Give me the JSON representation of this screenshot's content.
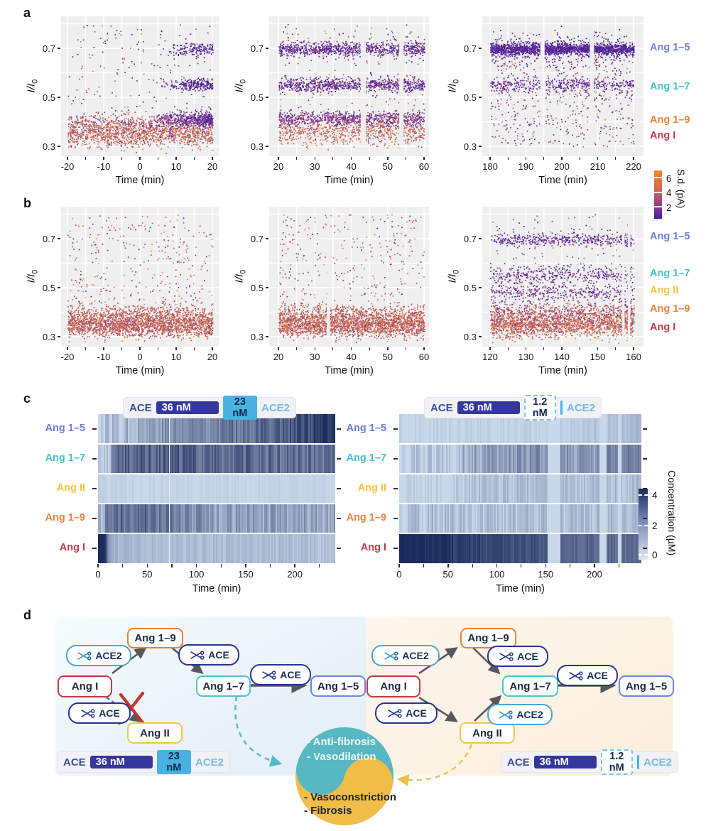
{
  "panel_letters": {
    "a": "a",
    "b": "b",
    "c": "c",
    "d": "d"
  },
  "axis": {
    "x": "Time (min)",
    "y_main": "I/I",
    "y_sub": "0"
  },
  "colors": {
    "plot_bg": "#efefef",
    "grid": "#ffffff",
    "heat_lo": "#c9d7ea",
    "heat_hi": "#1b2c5c",
    "teal": "#57b8c2",
    "yellow": "#f0bd49",
    "navy_chip": "#34379c",
    "light_blue_chip": "#49b2e2",
    "ace_text": "#3c4ca0",
    "ace2_text": "#79b8e6",
    "arrow": "#55595e",
    "red_x": "#c0392e",
    "ang15": "#6b7fdd",
    "ang17": "#44c3cf",
    "angII": "#f5c445",
    "ang19": "#f0813d",
    "angI": "#bf3a4a"
  },
  "colorbars": {
    "sd": {
      "label": "S.d. (pA)",
      "ticks": [
        "6",
        "4",
        "2"
      ],
      "gradient": [
        "#ef8a31",
        "#d66a49",
        "#b04f72",
        "#7c3496",
        "#451d9c"
      ]
    },
    "conc": {
      "label": "Concentration (µM)",
      "ticks": [
        "4",
        "2",
        "0"
      ],
      "gradient": [
        "#1b2c5c",
        "#8495bf",
        "#dfe6f1"
      ]
    }
  },
  "band_labels_a": [
    {
      "text": "Ang 1–5",
      "color": "#6b7fdd",
      "y": 68
    },
    {
      "text": "Ang 1–7",
      "color": "#44c3cf",
      "y": 123
    },
    {
      "text": "Ang 1–9",
      "color": "#f0813d",
      "y": 170
    },
    {
      "text": "Ang I",
      "color": "#bf3a4a",
      "y": 192
    }
  ],
  "band_labels_b": [
    {
      "text": "Ang 1–5",
      "color": "#6b7fdd",
      "y": 334
    },
    {
      "text": "Ang 1–7",
      "color": "#44c3cf",
      "y": 386
    },
    {
      "text": "Ang II",
      "color": "#f5c445",
      "y": 410
    },
    {
      "text": "Ang 1–9",
      "color": "#f0813d",
      "y": 436
    },
    {
      "text": "Ang I",
      "color": "#bf3a4a",
      "y": 462
    }
  ],
  "legends": {
    "left": {
      "ace": "ACE",
      "ace_val": "36 nM",
      "ace2_val": "23 nM",
      "ace2": "ACE2"
    },
    "right": {
      "ace": "ACE",
      "ace_val": "36 nM",
      "ace2_val": "1.2 nM",
      "ace2": "ACE2"
    }
  },
  "d": {
    "labels": {
      "angI": "Ang I",
      "ang19": "Ang 1–9",
      "ang17": "Ang 1–7",
      "ang15": "Ang 1–5",
      "angII": "Ang II",
      "ace": "ACE",
      "ace2": "ACE2"
    },
    "balance": {
      "top": [
        "- Anti-fibrosis",
        "- Vasodilation"
      ],
      "bottom": [
        "- Vasoconstriction",
        "- Fibrosis"
      ]
    }
  },
  "chart_data": [
    {
      "id": "a1",
      "type": "scatter",
      "xlabel": "Time (min)",
      "ylabel": "I/I0",
      "xlim": [
        -20,
        20
      ],
      "xticks": [
        -20,
        -10,
        0,
        10,
        20
      ],
      "yticks": [
        0.3,
        0.5,
        0.7
      ],
      "ylim": [
        0.27,
        0.83
      ],
      "grid": true,
      "seed": 11,
      "gaps": [],
      "bands": [
        {
          "x": [
            -20,
            20
          ],
          "yc": 0.352,
          "ys": 0.026,
          "n": 1100,
          "pal": [
            "#e2824b",
            "#d96e49",
            "#c65a52",
            "#b25468",
            "#9a4a77"
          ]
        },
        {
          "x": [
            -20,
            20
          ],
          "yc": 0.398,
          "ys": 0.02,
          "n": 420,
          "pal": [
            "#d97a50",
            "#b0506b",
            "#8a3c8e"
          ]
        },
        {
          "x": [
            3,
            20
          ],
          "yc": 0.412,
          "ys": 0.016,
          "n": 430,
          "ramp": 1,
          "pal": [
            "#45209c",
            "#5a2a9a",
            "#6e3196",
            "#8a3c8e"
          ]
        },
        {
          "x": [
            4,
            20
          ],
          "yc": 0.553,
          "ys": 0.012,
          "n": 230,
          "ramp": 1,
          "pal": [
            "#3c1c96",
            "#52249c",
            "#66309a"
          ]
        },
        {
          "x": [
            7,
            20
          ],
          "yc": 0.698,
          "ys": 0.013,
          "n": 150,
          "ramp": 1,
          "pal": [
            "#3c1c96",
            "#52249c",
            "#66309a"
          ]
        },
        {
          "x": [
            -20,
            20
          ],
          "uniform": [
            0.3,
            0.8
          ],
          "n": 230,
          "pal": [
            "#6e3196",
            "#8a3c8e",
            "#b05a6e",
            "#d97a50",
            "#45209c"
          ]
        }
      ]
    },
    {
      "id": "a2",
      "type": "scatter",
      "xlabel": "Time (min)",
      "ylabel": "I/I0",
      "xlim": [
        20,
        60
      ],
      "xticks": [
        20,
        30,
        40,
        50,
        60
      ],
      "yticks": [
        0.3,
        0.5,
        0.7
      ],
      "ylim": [
        0.27,
        0.83
      ],
      "grid": true,
      "seed": 22,
      "gaps": [
        [
          42.6,
          44.0
        ],
        [
          53.2,
          54.4
        ]
      ],
      "bands": [
        {
          "x": [
            20,
            60
          ],
          "yc": 0.36,
          "ys": 0.024,
          "n": 650,
          "pal": [
            "#e2824b",
            "#d96e49",
            "#c65a52",
            "#b25468"
          ]
        },
        {
          "x": [
            20,
            60
          ],
          "yc": 0.415,
          "ys": 0.015,
          "n": 850,
          "pal": [
            "#5a2a9a",
            "#6e3196",
            "#8a3c8e",
            "#b0506b"
          ]
        },
        {
          "x": [
            20,
            60
          ],
          "yc": 0.553,
          "ys": 0.013,
          "n": 800,
          "pal": [
            "#45209c",
            "#5a2a9a",
            "#6e3196",
            "#8a3c8e"
          ]
        },
        {
          "x": [
            20,
            60
          ],
          "yc": 0.698,
          "ys": 0.014,
          "n": 850,
          "pal": [
            "#45209c",
            "#5a2a9a",
            "#6e3196",
            "#8a3c8e"
          ]
        },
        {
          "x": [
            20,
            60
          ],
          "uniform": [
            0.3,
            0.8
          ],
          "n": 280,
          "pal": [
            "#6e3196",
            "#8a3c8e",
            "#b05a6e",
            "#d97a50",
            "#45209c"
          ]
        }
      ]
    },
    {
      "id": "a3",
      "type": "scatter",
      "xlabel": "Time (min)",
      "ylabel": "I/I0",
      "xlim": [
        180,
        220
      ],
      "xticks": [
        180,
        190,
        200,
        210,
        220
      ],
      "yticks": [
        0.3,
        0.5,
        0.7
      ],
      "ylim": [
        0.27,
        0.83
      ],
      "grid": true,
      "seed": 33,
      "gaps": [
        [
          194.0,
          195.2
        ],
        [
          207.8,
          209.0
        ]
      ],
      "bands": [
        {
          "x": [
            180,
            220
          ],
          "uniform": [
            0.3,
            0.67
          ],
          "n": 560,
          "pal": [
            "#6e3196",
            "#8a3c8e",
            "#52249c",
            "#b0506b",
            "#d97a50"
          ]
        },
        {
          "x": [
            180,
            220
          ],
          "yc": 0.551,
          "ys": 0.015,
          "n": 400,
          "pal": [
            "#45209c",
            "#5a2a9a",
            "#6e3196",
            "#8a3c8e"
          ]
        },
        {
          "x": [
            180,
            220
          ],
          "yc": 0.698,
          "ys": 0.034,
          "n": 420,
          "pal": [
            "#45209c",
            "#5a2a9a",
            "#6e3196"
          ]
        },
        {
          "x": [
            180,
            220
          ],
          "yc": 0.698,
          "ys": 0.011,
          "n": 1700,
          "pal": [
            "#3c1c96",
            "#52249c",
            "#5e2a93",
            "#6e3196"
          ]
        }
      ]
    },
    {
      "id": "b1",
      "type": "scatter",
      "xlabel": "Time (min)",
      "ylabel": "I/I0",
      "xlim": [
        -20,
        20
      ],
      "xticks": [
        -20,
        -10,
        0,
        10,
        20
      ],
      "yticks": [
        0.3,
        0.5,
        0.7
      ],
      "ylim": [
        0.27,
        0.83
      ],
      "grid": true,
      "seed": 44,
      "gaps": [],
      "bands": [
        {
          "x": [
            -20,
            20
          ],
          "yc": 0.352,
          "ys": 0.025,
          "n": 1900,
          "pal": [
            "#e2824b",
            "#d96e49",
            "#c65a52",
            "#b25468",
            "#9a4a77"
          ]
        },
        {
          "x": [
            -20,
            20
          ],
          "yc": 0.402,
          "ys": 0.018,
          "n": 320,
          "pal": [
            "#d97a50",
            "#c65a52",
            "#b0506b"
          ]
        },
        {
          "x": [
            -20,
            20
          ],
          "uniform": [
            0.3,
            0.8
          ],
          "n": 420,
          "pal": [
            "#b0506b",
            "#8a3c8e",
            "#d97a50",
            "#6e3196",
            "#e2824b"
          ]
        }
      ]
    },
    {
      "id": "b2",
      "type": "scatter",
      "xlabel": "Time (min)",
      "ylabel": "I/I0",
      "xlim": [
        20,
        60
      ],
      "xticks": [
        20,
        30,
        40,
        50,
        60
      ],
      "yticks": [
        0.3,
        0.5,
        0.7
      ],
      "ylim": [
        0.27,
        0.83
      ],
      "grid": true,
      "seed": 55,
      "gaps": [
        [
          33.3,
          34.2
        ]
      ],
      "bands": [
        {
          "x": [
            20,
            60
          ],
          "yc": 0.352,
          "ys": 0.025,
          "n": 2000,
          "pal": [
            "#e2824b",
            "#d96e49",
            "#c65a52",
            "#b25468",
            "#9a4a77"
          ]
        },
        {
          "x": [
            20,
            60
          ],
          "yc": 0.402,
          "ys": 0.018,
          "n": 320,
          "pal": [
            "#d97a50",
            "#c65a52",
            "#b0506b"
          ]
        },
        {
          "x": [
            20,
            60
          ],
          "uniform": [
            0.3,
            0.8
          ],
          "n": 380,
          "pal": [
            "#b0506b",
            "#8a3c8e",
            "#d97a50",
            "#6e3196",
            "#e2824b"
          ]
        }
      ]
    },
    {
      "id": "b3",
      "type": "scatter",
      "xlabel": "Time (min)",
      "ylabel": "I/I0",
      "xlim": [
        120,
        160
      ],
      "xticks": [
        120,
        130,
        140,
        150,
        160
      ],
      "yticks": [
        0.3,
        0.5,
        0.7
      ],
      "ylim": [
        0.27,
        0.83
      ],
      "grid": true,
      "seed": 66,
      "gaps": [
        [
          156.8,
          157.5
        ],
        [
          158.4,
          159.1
        ]
      ],
      "bands": [
        {
          "x": [
            120,
            160
          ],
          "yc": 0.355,
          "ys": 0.026,
          "n": 1700,
          "pal": [
            "#e2824b",
            "#d96e49",
            "#c65a52",
            "#b25468",
            "#9a4a77"
          ]
        },
        {
          "x": [
            120,
            160
          ],
          "yc": 0.41,
          "ys": 0.018,
          "n": 380,
          "pal": [
            "#8a3c8e",
            "#b0506b",
            "#d97a50"
          ]
        },
        {
          "x": [
            120,
            160
          ],
          "yc": 0.48,
          "ys": 0.017,
          "n": 330,
          "pal": [
            "#5a2a9a",
            "#6e3196",
            "#8a3c8e"
          ]
        },
        {
          "x": [
            120,
            160
          ],
          "yc": 0.553,
          "ys": 0.02,
          "n": 380,
          "pal": [
            "#45209c",
            "#5a2a9a",
            "#6e3196",
            "#8a3c8e"
          ]
        },
        {
          "x": [
            120,
            160
          ],
          "yc": 0.697,
          "ys": 0.012,
          "n": 430,
          "pal": [
            "#45209c",
            "#5a2a9a",
            "#6e3196",
            "#8a3c8e"
          ]
        },
        {
          "x": [
            120,
            160
          ],
          "uniform": [
            0.3,
            0.8
          ],
          "n": 240,
          "pal": [
            "#6e3196",
            "#8a3c8e",
            "#b05a6e",
            "#d97a50",
            "#45209c"
          ]
        }
      ]
    },
    {
      "id": "c1",
      "type": "heatmap",
      "xlabel": "Time (min)",
      "xlim": [
        0,
        241
      ],
      "xticks": [
        0,
        50,
        100,
        150,
        200
      ],
      "vmin": 0,
      "vmax": 4,
      "seed": 77,
      "gaps": [
        [
          71.5,
          72.8
        ]
      ],
      "gap_color": "#eef2f7",
      "rows": [
        {
          "label": "Ang 1–5",
          "color": "#6b7fdd",
          "amp": 0.7,
          "key": [
            [
              0,
              0.1
            ],
            [
              15,
              0.5
            ],
            [
              60,
              1.3
            ],
            [
              120,
              2.0
            ],
            [
              170,
              2.5
            ],
            [
              210,
              3.1
            ],
            [
              241,
              3.7
            ]
          ]
        },
        {
          "label": "Ang 1–7",
          "color": "#44c3cf",
          "amp": 0.8,
          "key": [
            [
              0,
              0.05
            ],
            [
              10,
              0.4
            ],
            [
              18,
              2.3
            ],
            [
              40,
              2.7
            ],
            [
              90,
              2.6
            ],
            [
              150,
              2.4
            ],
            [
              241,
              2.2
            ]
          ]
        },
        {
          "label": "Ang II",
          "color": "#f5c445",
          "amp": 0.12,
          "key": [
            [
              0,
              0.06
            ],
            [
              241,
              0.06
            ]
          ]
        },
        {
          "label": "Ang 1–9",
          "color": "#f0813d",
          "amp": 0.7,
          "key": [
            [
              0,
              0.3
            ],
            [
              12,
              2.3
            ],
            [
              45,
              2.5
            ],
            [
              75,
              1.9
            ],
            [
              110,
              1.3
            ],
            [
              150,
              1.1
            ],
            [
              241,
              1.1
            ]
          ]
        },
        {
          "label": "Ang I",
          "color": "#bf3a4a",
          "amp": 0.25,
          "key": [
            [
              0,
              4.2
            ],
            [
              7,
              4.0
            ],
            [
              10,
              1.2
            ],
            [
              20,
              0.7
            ],
            [
              60,
              0.55
            ],
            [
              241,
              0.45
            ]
          ]
        }
      ]
    },
    {
      "id": "c2",
      "type": "heatmap",
      "xlabel": "Time (min)",
      "xlim": [
        0,
        248
      ],
      "xticks": [
        0,
        50,
        100,
        150,
        200
      ],
      "vmin": 0,
      "vmax": 4,
      "seed": 88,
      "gaps": [
        [
          152,
          165
        ],
        [
          205,
          212
        ],
        [
          224,
          227
        ]
      ],
      "gap_color": "#c9d7ea",
      "rows": [
        {
          "label": "Ang 1–5",
          "color": "#6b7fdd",
          "amp": 0.18,
          "key": [
            [
              0,
              0.06
            ],
            [
              150,
              0.1
            ],
            [
              190,
              0.25
            ],
            [
              230,
              0.5
            ],
            [
              248,
              0.8
            ]
          ]
        },
        {
          "label": "Ang 1–7",
          "color": "#44c3cf",
          "amp": 0.75,
          "key": [
            [
              0,
              0.05
            ],
            [
              55,
              0.08
            ],
            [
              70,
              0.9
            ],
            [
              100,
              1.2
            ],
            [
              130,
              1.5
            ],
            [
              160,
              1.5
            ],
            [
              175,
              1.4
            ],
            [
              215,
              1.5
            ],
            [
              235,
              2.0
            ],
            [
              248,
              2.4
            ]
          ]
        },
        {
          "label": "Ang II",
          "color": "#f5c445",
          "amp": 0.4,
          "key": [
            [
              0,
              0.05
            ],
            [
              55,
              0.1
            ],
            [
              80,
              0.35
            ],
            [
              120,
              0.45
            ],
            [
              160,
              0.5
            ],
            [
              175,
              0.45
            ],
            [
              248,
              0.55
            ]
          ]
        },
        {
          "label": "Ang 1–9",
          "color": "#f0813d",
          "amp": 0.5,
          "key": [
            [
              0,
              0.15
            ],
            [
              15,
              0.45
            ],
            [
              248,
              0.5
            ]
          ]
        },
        {
          "label": "Ang I",
          "color": "#bf3a4a",
          "amp": 0.35,
          "key": [
            [
              0,
              4.2
            ],
            [
              45,
              4.0
            ],
            [
              55,
              3.6
            ],
            [
              100,
              3.2
            ],
            [
              140,
              3.0
            ],
            [
              160,
              2.9
            ],
            [
              175,
              2.6
            ],
            [
              215,
              2.5
            ],
            [
              248,
              2.3
            ]
          ]
        }
      ]
    }
  ]
}
